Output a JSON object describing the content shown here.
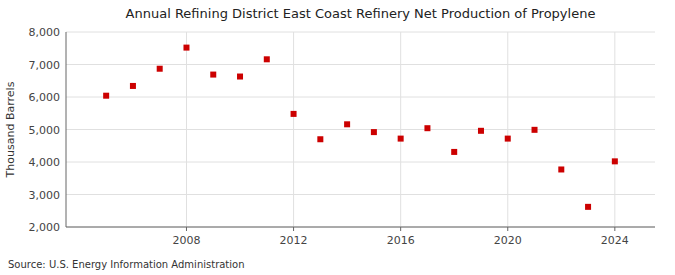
{
  "chart_data": {
    "type": "scatter",
    "title": "Annual Refining District East Coast Refinery Net Production of Propylene",
    "y_label": "Thousand Barrels",
    "source": "Source: U.S. Energy Information Administration",
    "x": [
      2005,
      2006,
      2007,
      2008,
      2009,
      2010,
      2011,
      2012,
      2013,
      2014,
      2015,
      2016,
      2017,
      2018,
      2019,
      2020,
      2021,
      2022,
      2023,
      2024
    ],
    "values": [
      6040,
      6340,
      6870,
      7520,
      6690,
      6630,
      7160,
      5480,
      4700,
      5160,
      4920,
      4720,
      5040,
      4310,
      4960,
      4720,
      4990,
      3770,
      2620,
      4020
    ],
    "color": "#cc0000",
    "marker": "square",
    "xlim": [
      2003.5,
      2025.5
    ],
    "ylim": [
      2000,
      8000
    ],
    "xticks": [
      2008,
      2012,
      2016,
      2020,
      2024
    ],
    "yticks": [
      {
        "value": 2000,
        "label": "2,000"
      },
      {
        "value": 3000,
        "label": "3,000"
      },
      {
        "value": 4000,
        "label": "4,000"
      },
      {
        "value": 5000,
        "label": "5,000"
      },
      {
        "value": 6000,
        "label": "6,000"
      },
      {
        "value": 7000,
        "label": "7,000"
      },
      {
        "value": 8000,
        "label": "8,000"
      }
    ],
    "grid": true
  }
}
